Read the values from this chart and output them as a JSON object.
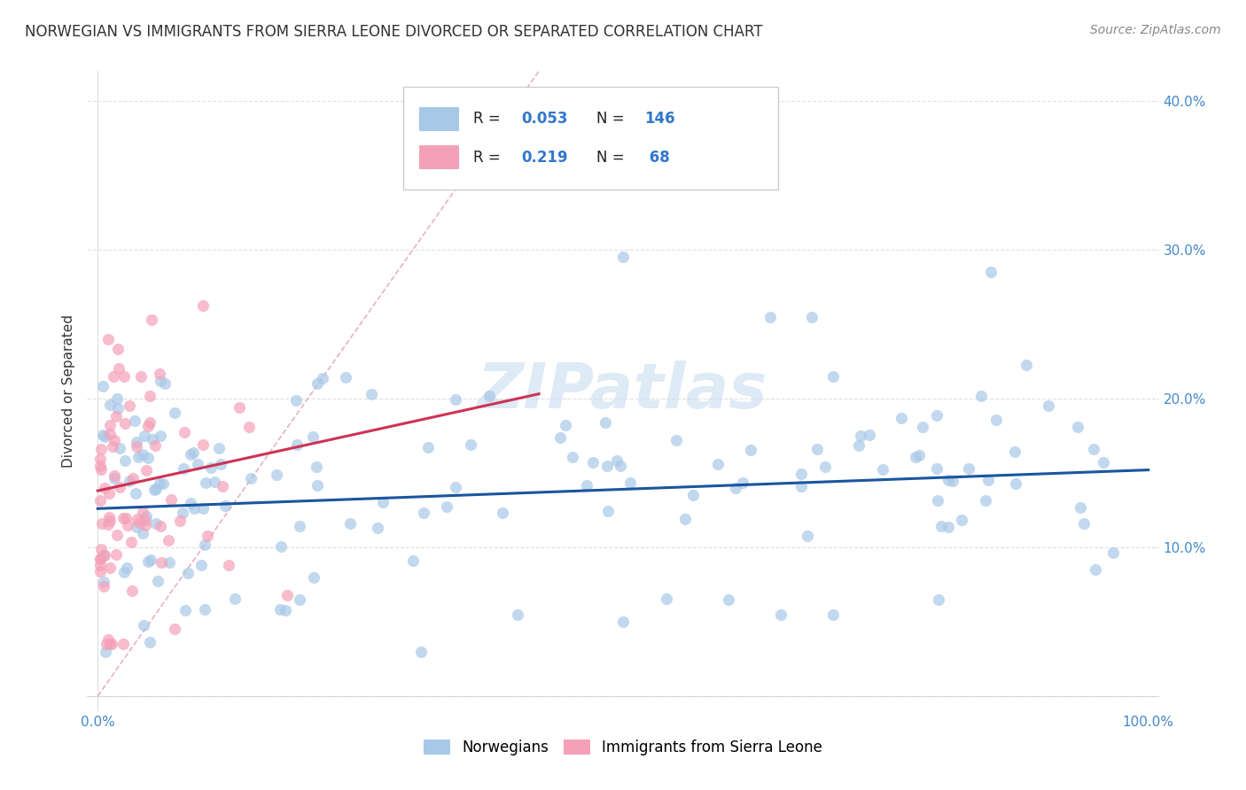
{
  "title": "NORWEGIAN VS IMMIGRANTS FROM SIERRA LEONE DIVORCED OR SEPARATED CORRELATION CHART",
  "source": "Source: ZipAtlas.com",
  "ylabel": "Divorced or Separated",
  "norwegian_R": 0.053,
  "norwegian_N": 146,
  "sierraleone_R": 0.219,
  "sierraleone_N": 68,
  "norwegian_color": "#a8c8e8",
  "sierraleone_color": "#f4a0b8",
  "norwegian_line_color": "#1a55a0",
  "sierraleone_line_color": "#cc3355",
  "diagonal_line_color": "#e0a0b0",
  "background_color": "#ffffff",
  "grid_color": "#cccccc",
  "watermark": "ZIPatlas",
  "legend_label_norwegian": "Norwegians",
  "legend_label_sierraleone": "Immigrants from Sierra Leone",
  "title_fontsize": 12,
  "source_fontsize": 10,
  "axis_label_fontsize": 11,
  "tick_fontsize": 11,
  "legend_fontsize": 12,
  "watermark_fontsize": 52,
  "watermark_color": "#c8ddf0",
  "watermark_alpha": 0.6
}
